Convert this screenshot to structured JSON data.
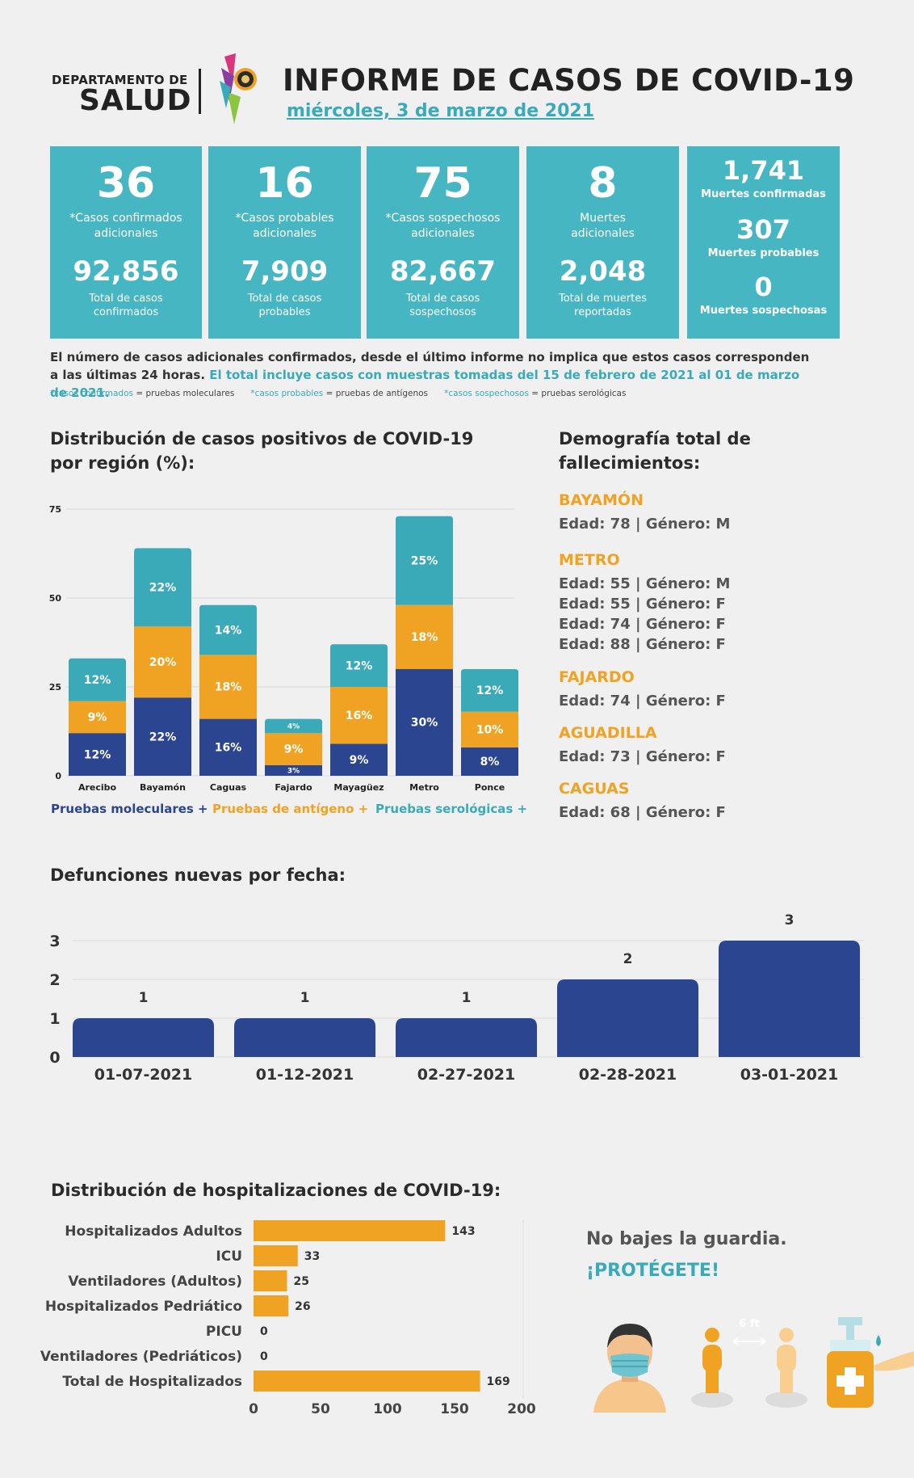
{
  "header": {
    "dept_line1": "DEPARTAMENTO DE",
    "dept_line2": "SALUD",
    "title": "INFORME DE CASOS DE COVID-19",
    "date": "miércoles, 3 de marzo de 2021"
  },
  "cards": [
    {
      "value": "36",
      "label": "*Casos confirmados adicionales",
      "total": "92,856",
      "total_label": "Total de casos confirmados"
    },
    {
      "value": "16",
      "label": "*Casos probables adicionales",
      "total": "7,909",
      "total_label": "Total de casos probables"
    },
    {
      "value": "75",
      "label": "*Casos sospechosos adicionales",
      "total": "82,667",
      "total_label": "Total de casos sospechosos"
    },
    {
      "value": "8",
      "label": "Muertes adicionales",
      "total": "2,048",
      "total_label": "Total de muertes reportadas"
    }
  ],
  "deaths_card": [
    {
      "value": "1,741",
      "label": "Muertes confirmadas"
    },
    {
      "value": "307",
      "label": "Muertes probables"
    },
    {
      "value": "0",
      "label": "Muertes sospechosas"
    }
  ],
  "notes": {
    "line1": "El número de casos adicionales confirmados, desde el último informe no implica que estos casos corresponden a las últimas 24 horas.",
    "line2": "El total incluye casos con muestras tomadas del 15 de febrero de 2021 al 01 de marzo de 2021.",
    "fn1_key": "*casos confirmados",
    "fn1_val": "= pruebas moleculares",
    "fn2_key": "*casos probables",
    "fn2_val": "= pruebas de antígenos",
    "fn3_key": "*casos sospechosos",
    "fn3_val": "= pruebas serológicas"
  },
  "region_section": {
    "title_line1": "Distribución de casos positivos de COVID-19",
    "title_line2": "por región (%):"
  },
  "demography": {
    "title_line1": "Demografía total de",
    "title_line2": "fallecimientos:",
    "groups": [
      {
        "city": "BAYAMÓN",
        "entries": [
          "Edad: 78 | Género: M"
        ]
      },
      {
        "city": "METRO",
        "entries": [
          "Edad: 55 | Género: M",
          "Edad: 55 | Género: F",
          "Edad: 74 | Género: F",
          "Edad: 88 | Género: F"
        ]
      },
      {
        "city": "FAJARDO",
        "entries": [
          "Edad: 74 | Género: F"
        ]
      },
      {
        "city": "AGUADILLA",
        "entries": [
          "Edad: 73 | Género: F"
        ]
      },
      {
        "city": "CAGUAS",
        "entries": [
          "Edad: 68 | Género: F"
        ]
      }
    ]
  },
  "deaths_section": {
    "title": "Defunciones nuevas por fecha:"
  },
  "hosp_section": {
    "title": "Distribución de hospitalizaciones de COVID-19:"
  },
  "slogan": {
    "line1": "No bajes la guardia.",
    "line2": "¡PROTÉGETE!",
    "distance": "6 ft"
  },
  "colors": {
    "navy": "#2c4591",
    "orange": "#f0a323",
    "teal": "#3aaab8",
    "card": "#45b6c2"
  },
  "chart_data": [
    {
      "type": "bar",
      "stacked": true,
      "categories": [
        "Arecibo",
        "Bayamón",
        "Caguas",
        "Fajardo",
        "Mayagüez",
        "Metro",
        "Ponce"
      ],
      "ylim": [
        0,
        75
      ],
      "yticks": [
        0,
        25,
        50,
        75
      ],
      "series": [
        {
          "name": "Pruebas moleculares +",
          "color": "#2c4591",
          "values": [
            12,
            22,
            16,
            3,
            9,
            30,
            8
          ],
          "labels": [
            "12%",
            "22%",
            "16%",
            "3%",
            "9%",
            "30%",
            "8%"
          ]
        },
        {
          "name": "Pruebas de antígeno +",
          "color": "#f0a323",
          "values": [
            9,
            20,
            18,
            9,
            16,
            18,
            10
          ],
          "labels": [
            "9%",
            "20%",
            "18%",
            "9%",
            "16%",
            "18%",
            "10%"
          ]
        },
        {
          "name": "Pruebas serológicas +",
          "color": "#3aaab8",
          "values": [
            12,
            22,
            14,
            4,
            12,
            25,
            12
          ],
          "labels": [
            "12%",
            "22%",
            "14%",
            "4%",
            "12%",
            "25%",
            "12%"
          ]
        }
      ],
      "legend_position": "bottom",
      "grid": true
    },
    {
      "type": "bar",
      "categories": [
        "01-07-2021",
        "01-12-2021",
        "02-27-2021",
        "02-28-2021",
        "03-01-2021"
      ],
      "values": [
        1,
        1,
        1,
        2,
        3
      ],
      "ylim": [
        0,
        3
      ],
      "yticks": [
        0,
        1,
        2,
        3
      ],
      "color": "#2c4591",
      "grid": true
    },
    {
      "type": "bar",
      "orientation": "horizontal",
      "categories": [
        "Hospitalizados Adultos",
        "ICU",
        "Ventiladores (Adultos)",
        "Hospitalizados Pedriático",
        "PICU",
        "Ventiladores (Pedriáticos)",
        "Total de Hospitalizados"
      ],
      "values": [
        143,
        33,
        25,
        26,
        0,
        0,
        169
      ],
      "xlim": [
        0,
        200
      ],
      "xticks": [
        0,
        50,
        100,
        150,
        200
      ],
      "color": "#f0a323"
    }
  ]
}
